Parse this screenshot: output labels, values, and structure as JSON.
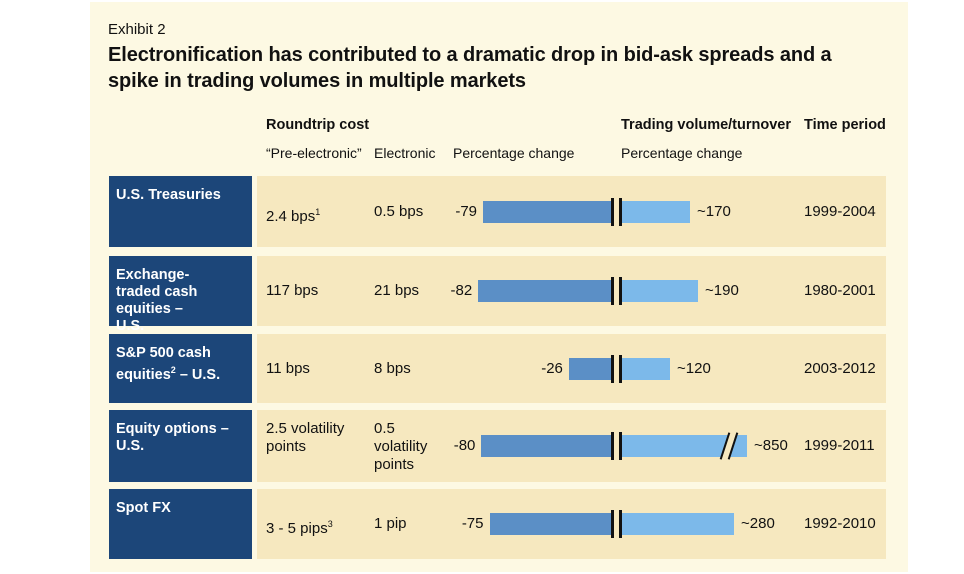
{
  "exhibit": "Exhibit 2",
  "title_line1": "Electronification has contributed to a dramatic drop in bid-ask spreads and a",
  "title_line2": "spike in trading volumes in multiple markets",
  "headers": {
    "roundtrip_cost": "Roundtrip cost",
    "trading_volume": "Trading volume/turnover",
    "time_period": "Time period",
    "pre_electronic": "“Pre-electronic”",
    "electronic": "Electronic",
    "pct_change_cost": "Percentage change",
    "pct_change_volume": "Percentage change"
  },
  "chart_data": {
    "type": "bar",
    "categories": [
      "U.S. Treasuries",
      "Exchange-traded cash equities – U.S.",
      "S&P 500 cash equities – U.S.",
      "Equity options – U.S.",
      "Spot FX"
    ],
    "series": [
      {
        "name": "Roundtrip cost percentage change",
        "values": [
          -79,
          -82,
          -26,
          -80,
          -75
        ]
      },
      {
        "name": "Trading volume/turnover percentage change",
        "values": [
          170,
          190,
          120,
          850,
          280
        ]
      }
    ],
    "axis_break_on_value": 850
  },
  "rows": [
    {
      "label": "U.S. Treasuries",
      "label_sup": "",
      "pre": "2.4 bps",
      "pre_sup": "1",
      "elec": "0.5 bps",
      "cost_change": "-79",
      "volume_change": "~170",
      "period": "1999-2004"
    },
    {
      "label": "Exchange-traded cash equities – U.S.",
      "label_sup": "",
      "pre": "117 bps",
      "pre_sup": "",
      "elec": "21 bps",
      "cost_change": "-82",
      "volume_change": "~190",
      "period": "1980-2001"
    },
    {
      "label": "S&P 500 cash equities",
      "label_sup": "2",
      "label_tail": " – U.S.",
      "pre": "11 bps",
      "pre_sup": "",
      "elec": "8 bps",
      "cost_change": "-26",
      "volume_change": "~120",
      "period": "2003-2012"
    },
    {
      "label": "Equity options – U.S.",
      "label_sup": "",
      "pre": "2.5 volatility points",
      "pre_sup": "",
      "elec": "0.5 volatility points",
      "cost_change": "-80",
      "volume_change": "~850",
      "period": "1999-2011"
    },
    {
      "label": "Spot FX",
      "label_sup": "",
      "pre": "3 - 5 pips",
      "pre_sup": "3",
      "elec": "1 pip",
      "cost_change": "-75",
      "volume_change": "~280",
      "period": "1992-2010"
    }
  ],
  "colors": {
    "panel_bg": "#fdf9e3",
    "row_bg": "#f6e8bf",
    "label_bg": "#1c4679",
    "cost_bar": "#5b8fc6",
    "volume_bar": "#7cb9ea"
  }
}
